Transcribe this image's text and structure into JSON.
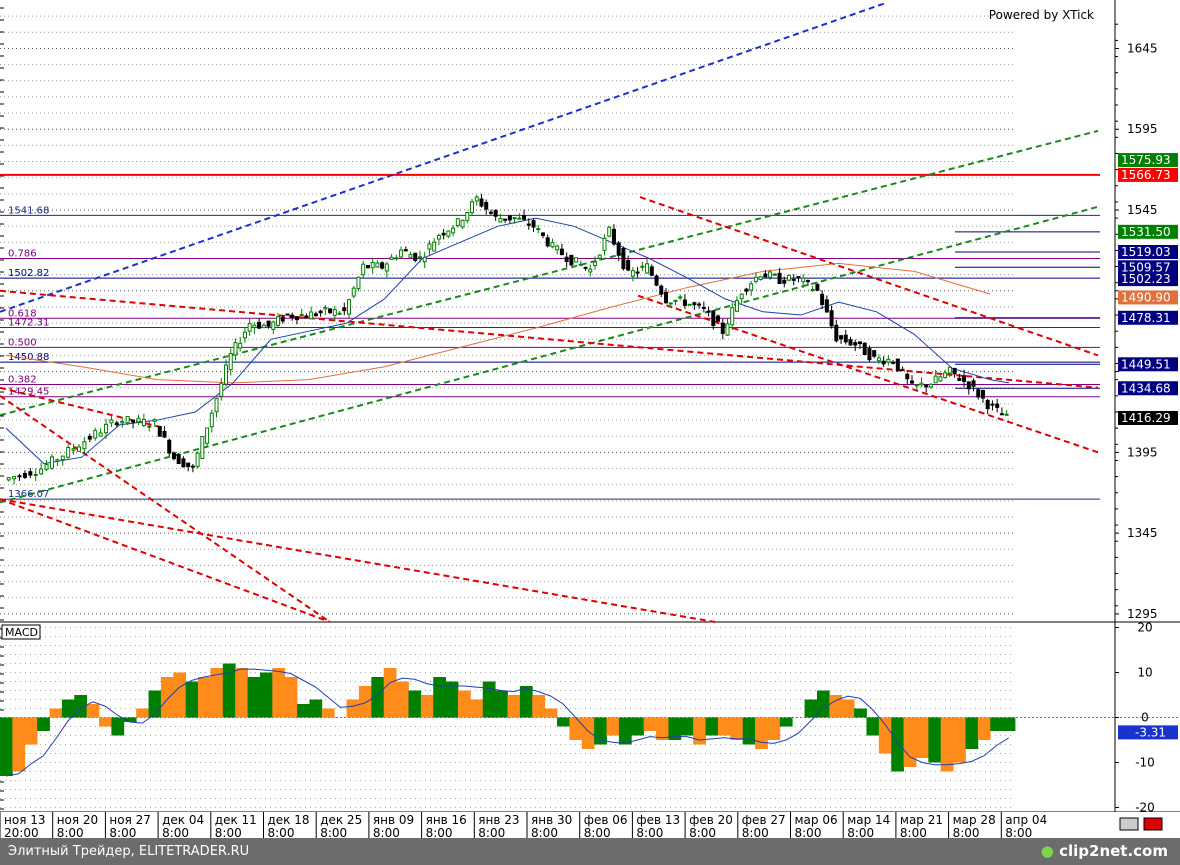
{
  "header": {
    "brand": "Powered by XTick"
  },
  "footer": {
    "caption": "Элитный Трейдер, ELITETRADER.RU",
    "logo": "clip2net.com"
  },
  "colors": {
    "up": "#008000",
    "down": "#ff0000",
    "ma": "#1f3fb0",
    "ma_long": "#e0703c",
    "macd_pos": "#ff8c1a",
    "macd_neg": "#008000"
  },
  "chart_data": [
    {
      "type": "candlestick",
      "name": "price",
      "y_ticks": [
        1295,
        1345,
        1395,
        1445,
        1495,
        1545,
        1595,
        1645
      ],
      "y_tick_labels": [
        "1295",
        "1345",
        "1395",
        "",
        "",
        "1545",
        "1595",
        "1645"
      ],
      "ylim": [
        1290,
        1675
      ],
      "x_labels_date": [
        "ноя 13",
        "ноя 20",
        "ноя 27",
        "дек 04",
        "дек 11",
        "дек 18",
        "дек 25",
        "янв 09",
        "янв 16",
        "янв 23",
        "янв 30",
        "фев 06",
        "фев 13",
        "фев 20",
        "фев 27",
        "мар 06",
        "мар 14",
        "мар 21",
        "мар 28",
        "апр 04"
      ],
      "x_labels_time": [
        "20:00",
        "8:00",
        "8:00",
        "8:00",
        "8:00",
        "8:00",
        "8:00",
        "8:00",
        "8:00",
        "8:00",
        "8:00",
        "8:00",
        "8:00",
        "8:00",
        "8:00",
        "8:00",
        "8:00",
        "8:00",
        "8:00",
        "8:00"
      ],
      "close_path": [
        [
          0,
          1378
        ],
        [
          2,
          1385
        ],
        [
          4,
          1400
        ],
        [
          6,
          1415
        ],
        [
          8,
          1413
        ],
        [
          9,
          1392
        ],
        [
          10,
          1385
        ],
        [
          11,
          1420
        ],
        [
          12,
          1455
        ],
        [
          13,
          1475
        ],
        [
          14,
          1473
        ],
        [
          15,
          1480
        ],
        [
          16,
          1480
        ],
        [
          17,
          1482
        ],
        [
          18,
          1482
        ],
        [
          19,
          1510
        ],
        [
          20,
          1510
        ],
        [
          21,
          1520
        ],
        [
          22,
          1515
        ],
        [
          23,
          1530
        ],
        [
          24,
          1537
        ],
        [
          25,
          1552
        ],
        [
          26,
          1540
        ],
        [
          27,
          1540
        ],
        [
          28,
          1535
        ],
        [
          29,
          1522
        ],
        [
          30,
          1514
        ],
        [
          31,
          1508
        ],
        [
          32,
          1532
        ],
        [
          33,
          1505
        ],
        [
          34,
          1510
        ],
        [
          35,
          1490
        ],
        [
          36,
          1488
        ],
        [
          37,
          1483
        ],
        [
          38,
          1470
        ],
        [
          39,
          1495
        ],
        [
          40,
          1506
        ],
        [
          41,
          1502
        ],
        [
          42,
          1502
        ],
        [
          43,
          1495
        ],
        [
          44,
          1466
        ],
        [
          45,
          1462
        ],
        [
          46,
          1453
        ],
        [
          47,
          1452
        ],
        [
          48,
          1435
        ],
        [
          49,
          1438
        ],
        [
          50,
          1445
        ],
        [
          51,
          1437
        ],
        [
          52,
          1425
        ],
        [
          53,
          1416
        ]
      ],
      "sma_short": [
        [
          0,
          1410
        ],
        [
          2,
          1388
        ],
        [
          4,
          1392
        ],
        [
          6,
          1412
        ],
        [
          8,
          1415
        ],
        [
          10,
          1420
        ],
        [
          12,
          1438
        ],
        [
          14,
          1465
        ],
        [
          16,
          1470
        ],
        [
          18,
          1475
        ],
        [
          20,
          1490
        ],
        [
          22,
          1515
        ],
        [
          24,
          1525
        ],
        [
          26,
          1535
        ],
        [
          28,
          1540
        ],
        [
          30,
          1535
        ],
        [
          32,
          1525
        ],
        [
          34,
          1515
        ],
        [
          36,
          1503
        ],
        [
          38,
          1490
        ],
        [
          40,
          1482
        ],
        [
          42,
          1480
        ],
        [
          44,
          1488
        ],
        [
          46,
          1482
        ],
        [
          48,
          1468
        ],
        [
          50,
          1447
        ],
        [
          52,
          1440
        ],
        [
          53,
          1438
        ]
      ],
      "sma_long": [
        [
          0,
          1455
        ],
        [
          4,
          1448
        ],
        [
          8,
          1440
        ],
        [
          12,
          1438
        ],
        [
          16,
          1440
        ],
        [
          20,
          1448
        ],
        [
          24,
          1460
        ],
        [
          28,
          1472
        ],
        [
          32,
          1485
        ],
        [
          36,
          1497
        ],
        [
          40,
          1507
        ],
        [
          44,
          1512
        ],
        [
          48,
          1507
        ],
        [
          50,
          1500
        ],
        [
          52,
          1493
        ]
      ],
      "levels": [
        {
          "label": "1541.68",
          "value": 1541.68,
          "color": "#1a2a8a"
        },
        {
          "label": "0.786",
          "value": 1515.0,
          "color": "#800080"
        },
        {
          "label": "1502.82",
          "value": 1502.82,
          "color": "#000080"
        },
        {
          "label": "0.618",
          "value": 1478.0,
          "color": "#800080"
        },
        {
          "label": "1472.31",
          "value": 1472.31,
          "color": "#800080"
        },
        {
          "label": "0.500",
          "value": 1460.0,
          "color": "#800080"
        },
        {
          "label": "1450.88",
          "value": 1450.88,
          "color": "#000080"
        },
        {
          "label": "0.382",
          "value": 1437.0,
          "color": "#800080"
        },
        {
          "label": "1429.45",
          "value": 1429.45,
          "color": "#800080"
        },
        {
          "label": "1366.07",
          "value": 1366.07,
          "color": "#1a2a8a"
        }
      ],
      "right_labels": [
        {
          "value": 1575.93,
          "text": "1575.93",
          "bg": "#008000",
          "fg": "#ffffff"
        },
        {
          "value": 1566.73,
          "text": "1566.73",
          "bg": "#ff0000",
          "fg": "#ffffff"
        },
        {
          "value": 1531.5,
          "text": "1531.50",
          "bg": "#008000",
          "fg": "#ffffff"
        },
        {
          "value": 1519.03,
          "text": "1519.03",
          "bg": "#000080",
          "fg": "#ffffff"
        },
        {
          "value": 1509.57,
          "text": "1509.57",
          "bg": "#000080",
          "fg": "#ffffff"
        },
        {
          "value": 1502.23,
          "text": "1502.23",
          "bg": "#000080",
          "fg": "#ffffff"
        },
        {
          "value": 1490.9,
          "text": "1490.90",
          "bg": "#e0703c",
          "fg": "#ffffff"
        },
        {
          "value": 1478.31,
          "text": "1478.31",
          "bg": "#000080",
          "fg": "#ffffff"
        },
        {
          "value": 1449.51,
          "text": "1449.51",
          "bg": "#000080",
          "fg": "#ffffff"
        },
        {
          "value": 1434.68,
          "text": "1434.68",
          "bg": "#000080",
          "fg": "#ffffff"
        },
        {
          "value": 1416.29,
          "text": "1416.29",
          "bg": "#000000",
          "fg": "#ffffff"
        }
      ]
    },
    {
      "type": "histogram",
      "name": "MACD",
      "title": "MACD",
      "y_ticks": [
        -20,
        -10,
        0,
        10,
        20
      ],
      "ylim": [
        -21,
        21
      ],
      "last_value": "-3.31",
      "values": [
        -13,
        -12,
        -6,
        -3,
        2,
        4,
        5,
        3,
        -2,
        -4,
        -1,
        2,
        6,
        9,
        10,
        8,
        9,
        11,
        12,
        11,
        9,
        10,
        11,
        9,
        3,
        4,
        2,
        0,
        4,
        7,
        9,
        11,
        8,
        6,
        5,
        9,
        8,
        6,
        4,
        8,
        6,
        5,
        7,
        5,
        2,
        -2,
        -5,
        -7,
        -6,
        -4,
        -6,
        -4,
        -3,
        -5,
        -5,
        -4,
        -6,
        -4,
        -4,
        -5,
        -6,
        -7,
        -5,
        -2,
        0,
        4,
        6,
        5,
        4,
        2,
        -4,
        -8,
        -12,
        -11,
        -9,
        -10,
        -12,
        -10,
        -7,
        -5,
        -3,
        -3
      ]
    }
  ]
}
